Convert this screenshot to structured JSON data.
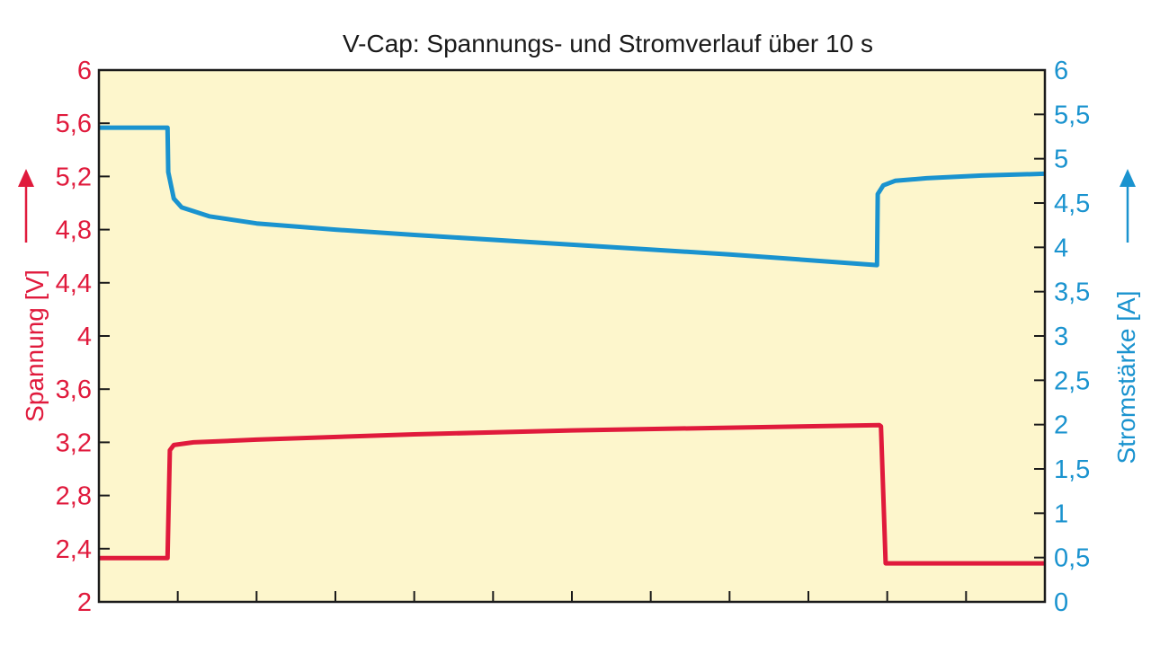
{
  "chart_data": {
    "type": "line",
    "title": "V-Cap: Spannungs- und Stromverlauf über 10 s",
    "ylabel_left": "Spannung [V]",
    "ylabel_right": "Stromstärke [A]",
    "ylim_left": [
      2,
      6
    ],
    "ylim_right": [
      0,
      6
    ],
    "xlim": [
      0,
      12
    ],
    "grid": false,
    "background": "#fdf6cc",
    "yticks_left": [
      "2",
      "2,4",
      "2,8",
      "3,2",
      "3,6",
      "4",
      "4,4",
      "4,8",
      "5,2",
      "5,6",
      "6"
    ],
    "yticks_right": [
      "0",
      "0,5",
      "1",
      "1,5",
      "2",
      "2,5",
      "3",
      "3,5",
      "4",
      "4,5",
      "5",
      "5,5",
      "6"
    ],
    "series": [
      {
        "axis": "left",
        "color": "#e01a3c",
        "x": [
          0,
          0.87,
          0.9,
          0.95,
          1.2,
          2,
          4,
          6,
          8,
          9.9,
          9.92,
          9.98,
          12
        ],
        "y": [
          2.33,
          2.33,
          3.14,
          3.18,
          3.2,
          3.22,
          3.26,
          3.29,
          3.31,
          3.33,
          3.32,
          2.29,
          2.29
        ]
      },
      {
        "axis": "right",
        "color": "#1a93cf",
        "x": [
          0,
          0.87,
          0.88,
          0.95,
          1.05,
          1.4,
          2,
          3,
          4,
          6,
          8,
          9.87,
          9.88,
          9.95,
          10.1,
          10.5,
          11.2,
          12
        ],
        "y": [
          5.35,
          5.35,
          4.85,
          4.55,
          4.45,
          4.35,
          4.27,
          4.2,
          4.14,
          4.03,
          3.92,
          3.8,
          4.6,
          4.7,
          4.75,
          4.78,
          4.81,
          4.83
        ]
      }
    ]
  },
  "colors": {
    "voltage": "#e01a3c",
    "current": "#1a93cf",
    "frame": "#1a1a1a",
    "plot_bg": "#fdf6cc"
  }
}
